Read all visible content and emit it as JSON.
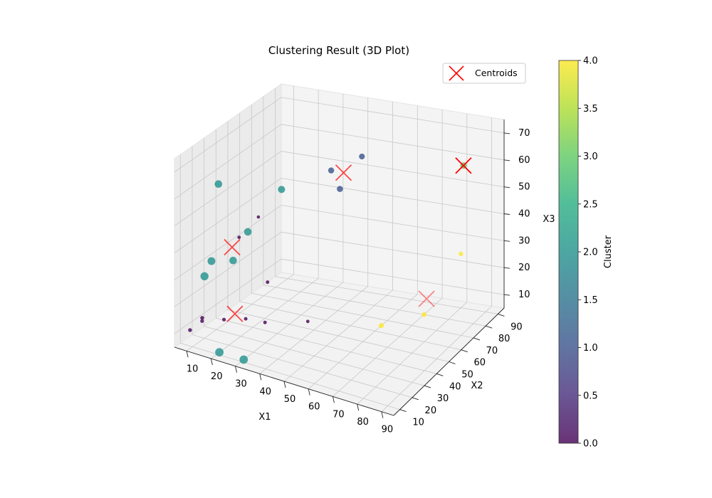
{
  "chart_data": {
    "type": "scatter",
    "projection": "3d",
    "title": "Clustering Result (3D Plot)",
    "xlabel": "X1",
    "ylabel": "X2",
    "zlabel": "X3",
    "xlim": [
      5,
      95
    ],
    "ylim": [
      5,
      95
    ],
    "zlim": [
      5,
      75
    ],
    "grid": true,
    "x_ticks": [
      10,
      20,
      30,
      40,
      50,
      60,
      70,
      80,
      90
    ],
    "y_ticks": [
      10,
      20,
      30,
      40,
      50,
      60,
      70,
      80,
      90
    ],
    "z_ticks": [
      10,
      20,
      30,
      40,
      50,
      60,
      70
    ],
    "colormap": "viridis",
    "colorbar": {
      "label": "Cluster",
      "range": [
        0,
        4
      ],
      "ticks": [
        "0.0",
        "0.5",
        "1.0",
        "1.5",
        "2.0",
        "2.5",
        "3.0",
        "3.5",
        "4.0"
      ]
    },
    "legend": {
      "placement": "top-right",
      "entries": [
        "Centroids"
      ]
    },
    "points": [
      {
        "x": 8,
        "y": 12,
        "z": 10,
        "cluster": 0
      },
      {
        "x": 10,
        "y": 18,
        "z": 12,
        "cluster": 0
      },
      {
        "x": 12,
        "y": 14,
        "z": 15,
        "cluster": 0
      },
      {
        "x": 18,
        "y": 20,
        "z": 14,
        "cluster": 0
      },
      {
        "x": 22,
        "y": 30,
        "z": 12,
        "cluster": 0
      },
      {
        "x": 25,
        "y": 40,
        "z": 8,
        "cluster": 0
      },
      {
        "x": 40,
        "y": 45,
        "z": 10,
        "cluster": 0
      },
      {
        "x": 28,
        "y": 36,
        "z": 25,
        "cluster": 0
      },
      {
        "x": 12,
        "y": 45,
        "z": 35,
        "cluster": 0
      },
      {
        "x": 15,
        "y": 55,
        "z": 40,
        "cluster": 0
      },
      {
        "x": 30,
        "y": 85,
        "z": 50,
        "cluster": 1
      },
      {
        "x": 35,
        "y": 82,
        "z": 45,
        "cluster": 1
      },
      {
        "x": 40,
        "y": 90,
        "z": 55,
        "cluster": 1
      },
      {
        "x": 6,
        "y": 40,
        "z": 55,
        "cluster": 2
      },
      {
        "x": 22,
        "y": 60,
        "z": 50,
        "cluster": 2
      },
      {
        "x": 18,
        "y": 40,
        "z": 40,
        "cluster": 2
      },
      {
        "x": 10,
        "y": 20,
        "z": 28,
        "cluster": 2
      },
      {
        "x": 8,
        "y": 30,
        "z": 30,
        "cluster": 2
      },
      {
        "x": 12,
        "y": 40,
        "z": 28,
        "cluster": 2
      },
      {
        "x": 20,
        "y": 12,
        "z": 5,
        "cluster": 2
      },
      {
        "x": 30,
        "y": 12,
        "z": 5,
        "cluster": 2
      },
      {
        "x": 85,
        "y": 82,
        "z": 62,
        "cluster": 3
      },
      {
        "x": 75,
        "y": 70,
        "z": 10,
        "cluster": 4
      },
      {
        "x": 80,
        "y": 90,
        "z": 25,
        "cluster": 4
      },
      {
        "x": 65,
        "y": 55,
        "z": 10,
        "cluster": 4
      }
    ],
    "centroids": [
      {
        "x": 20,
        "y": 25,
        "z": 15
      },
      {
        "x": 35,
        "y": 85,
        "z": 50
      },
      {
        "x": 14,
        "y": 35,
        "z": 35
      },
      {
        "x": 85,
        "y": 82,
        "z": 62
      },
      {
        "x": 75,
        "y": 72,
        "z": 15
      }
    ]
  }
}
